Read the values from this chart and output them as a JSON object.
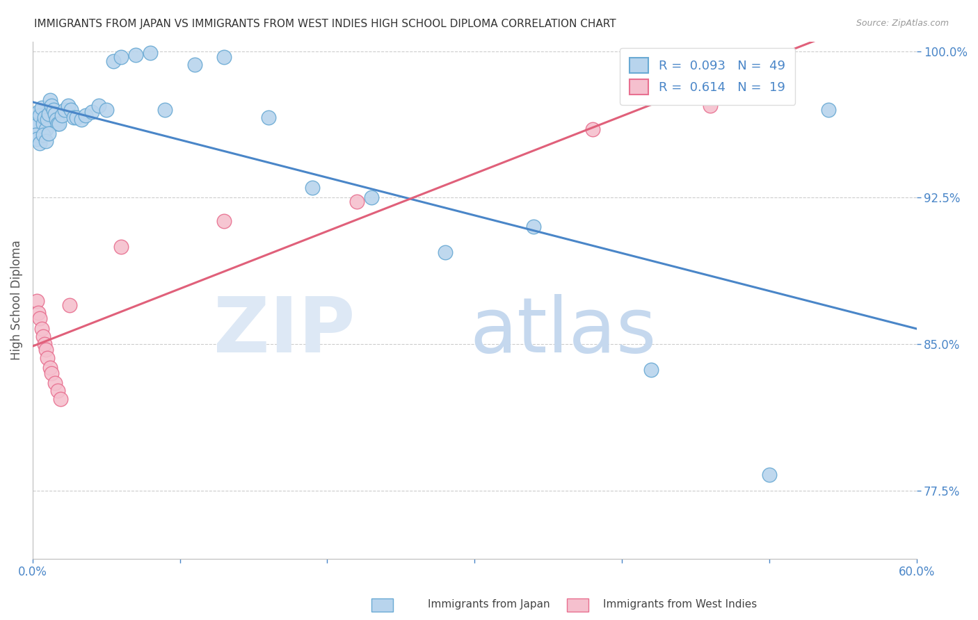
{
  "title": "IMMIGRANTS FROM JAPAN VS IMMIGRANTS FROM WEST INDIES HIGH SCHOOL DIPLOMA CORRELATION CHART",
  "source": "Source: ZipAtlas.com",
  "ylabel": "High School Diploma",
  "xmin": 0.0,
  "xmax": 0.6,
  "ymin": 0.74,
  "ymax": 1.005,
  "yticks": [
    0.775,
    0.85,
    0.925,
    1.0
  ],
  "ytick_labels": [
    "77.5%",
    "85.0%",
    "92.5%",
    "100.0%"
  ],
  "label_japan": "Immigrants from Japan",
  "label_wi": "Immigrants from West Indies",
  "color_japan_fill": "#b8d4ed",
  "color_wi_fill": "#f5c0ce",
  "color_japan_edge": "#6aaad4",
  "color_wi_edge": "#e87090",
  "color_japan_line": "#4a86c8",
  "color_wi_line": "#e0607a",
  "color_axis_text": "#4a86c8",
  "color_grid": "#cccccc",
  "watermark_zip_color": "#dde8f5",
  "watermark_atlas_color": "#c5d8ee",
  "figsize": [
    14.06,
    8.92
  ],
  "dpi": 100,
  "japan_x": [
    0.002,
    0.003,
    0.004,
    0.005,
    0.006,
    0.007,
    0.008,
    0.009,
    0.01,
    0.011,
    0.012,
    0.013,
    0.014,
    0.015,
    0.016,
    0.017,
    0.018,
    0.02,
    0.022,
    0.024,
    0.026,
    0.028,
    0.03,
    0.033,
    0.036,
    0.04,
    0.045,
    0.05,
    0.055,
    0.06,
    0.07,
    0.08,
    0.09,
    0.11,
    0.13,
    0.16,
    0.19,
    0.23,
    0.28,
    0.34,
    0.42,
    0.5,
    0.54,
    0.002,
    0.003,
    0.005,
    0.007,
    0.009,
    0.011
  ],
  "japan_y": [
    0.964,
    0.962,
    0.969,
    0.967,
    0.971,
    0.963,
    0.966,
    0.96,
    0.965,
    0.968,
    0.975,
    0.972,
    0.97,
    0.968,
    0.965,
    0.963,
    0.963,
    0.967,
    0.97,
    0.972,
    0.97,
    0.966,
    0.966,
    0.965,
    0.967,
    0.969,
    0.972,
    0.97,
    0.995,
    0.997,
    0.998,
    0.999,
    0.97,
    0.993,
    0.997,
    0.966,
    0.93,
    0.925,
    0.897,
    0.91,
    0.837,
    0.783,
    0.97,
    0.957,
    0.955,
    0.953,
    0.957,
    0.954,
    0.958
  ],
  "wi_x": [
    0.003,
    0.004,
    0.005,
    0.006,
    0.007,
    0.008,
    0.009,
    0.01,
    0.012,
    0.013,
    0.015,
    0.017,
    0.019,
    0.025,
    0.06,
    0.13,
    0.22,
    0.38,
    0.46
  ],
  "wi_y": [
    0.872,
    0.866,
    0.863,
    0.858,
    0.854,
    0.85,
    0.847,
    0.843,
    0.838,
    0.835,
    0.83,
    0.826,
    0.822,
    0.87,
    0.9,
    0.913,
    0.923,
    0.96,
    0.972
  ]
}
